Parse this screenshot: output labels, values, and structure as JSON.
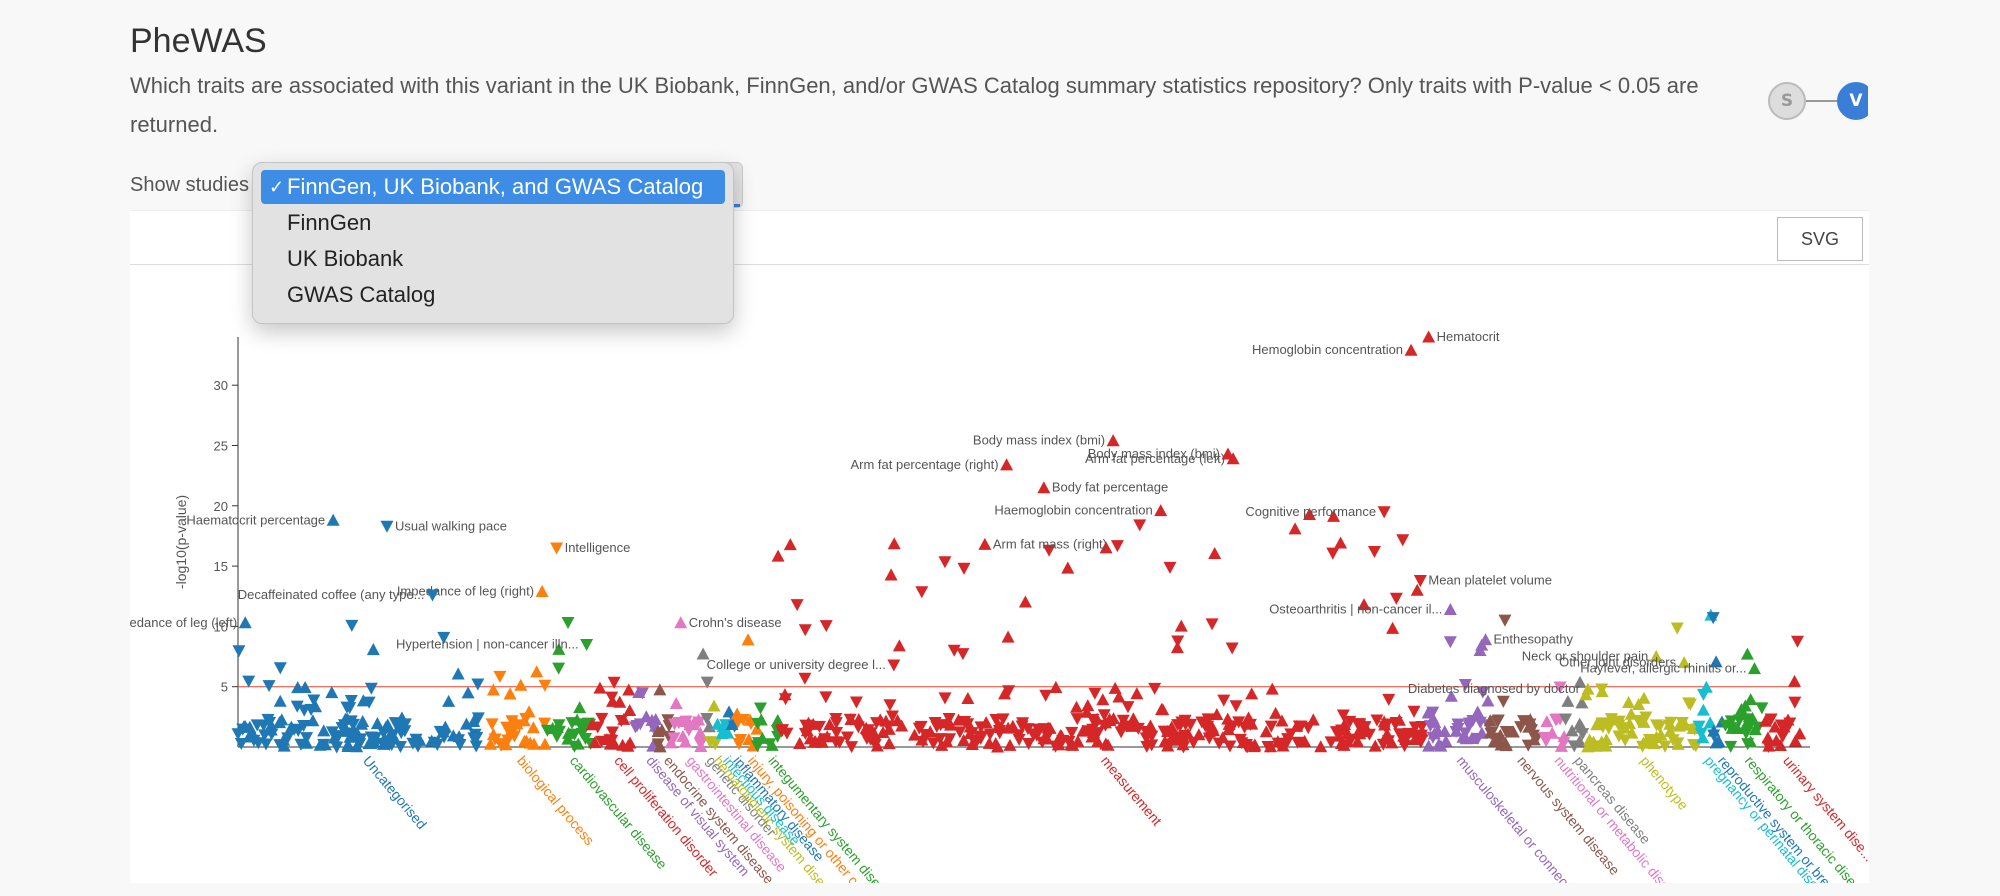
{
  "page": {
    "title": "PheWAS",
    "description": "Which traits are associated with this variant in the UK Biobank, FinnGen, and/or GWAS Catalog summary statistics repository? Only traits with P-value < 0.05 are returned."
  },
  "stepper": {
    "steps": [
      "S",
      "V"
    ],
    "active": "V"
  },
  "controls": {
    "show_studies_label": "Show studies",
    "options": [
      "FinnGen, UK Biobank, and GWAS Catalog",
      "FinnGen",
      "UK Biobank",
      "GWAS Catalog"
    ],
    "selected": "FinnGen, UK Biobank, and GWAS Catalog",
    "checkmark": "✓",
    "svg_button": "SVG"
  },
  "chart_data": {
    "type": "scatter",
    "ylabel": "-log10(p-value)",
    "yticks": [
      5,
      10,
      15,
      20,
      25,
      30
    ],
    "ylim": [
      0,
      33
    ],
    "threshold": 5,
    "threshold_color": "#e8452f",
    "categories": [
      {
        "name": "Uncategorised",
        "color": "#1f77b4",
        "x": [
          0,
          240
        ]
      },
      {
        "name": "biological process",
        "color": "#ff7f0e",
        "x": [
          240,
          298
        ]
      },
      {
        "name": "cardiovascular disease",
        "color": "#2ca02c",
        "x": [
          298,
          342
        ]
      },
      {
        "name": "cell proliferation disorder",
        "color": "#d62728",
        "x": [
          342,
          384
        ]
      },
      {
        "name": "disease of visual system",
        "color": "#9467bd",
        "x": [
          384,
          404
        ]
      },
      {
        "name": "endocrine system disease",
        "color": "#8c564b",
        "x": [
          404,
          418
        ]
      },
      {
        "name": "gastrointestinal disease",
        "color": "#e377c2",
        "x": [
          418,
          448
        ]
      },
      {
        "name": "genetic disorder",
        "color": "#7f7f7f",
        "x": [
          448,
          456
        ]
      },
      {
        "name": "hematopoietic system disease",
        "color": "#bcbd22",
        "x": [
          456,
          462
        ]
      },
      {
        "name": "infectious disease",
        "color": "#17becf",
        "x": [
          462,
          474
        ]
      },
      {
        "name": "inflammatory disease",
        "color": "#1f77b4",
        "x": [
          474,
          482
        ]
      },
      {
        "name": "injury, poisoning or other co...",
        "color": "#ff7f0e",
        "x": [
          482,
          502
        ]
      },
      {
        "name": "integumentary system dise...",
        "color": "#2ca02c",
        "x": [
          502,
          522
        ]
      },
      {
        "name": "measurement",
        "color": "#d62728",
        "x": [
          522,
          1145
        ]
      },
      {
        "name": "musculoskeletal or connecti...",
        "color": "#9467bd",
        "x": [
          1145,
          1210
        ]
      },
      {
        "name": "nervous system disease",
        "color": "#8c564b",
        "x": [
          1210,
          1262
        ]
      },
      {
        "name": "nutritional or metabolic dise...",
        "color": "#e377c2",
        "x": [
          1262,
          1282
        ]
      },
      {
        "name": "pancreas disease",
        "color": "#7f7f7f",
        "x": [
          1282,
          1300
        ]
      },
      {
        "name": "phenotype",
        "color": "#bcbd22",
        "x": [
          1300,
          1410
        ]
      },
      {
        "name": "pregnancy or perinatal dise...",
        "color": "#17becf",
        "x": [
          1410,
          1424
        ]
      },
      {
        "name": "reproductive system or brea...",
        "color": "#1f77b4",
        "x": [
          1424,
          1436
        ]
      },
      {
        "name": "respiratory or thoracic dise...",
        "color": "#2ca02c",
        "x": [
          1436,
          1476
        ]
      },
      {
        "name": "urinary system dise...",
        "color": "#d62728",
        "x": [
          1476,
          1510
        ]
      }
    ],
    "annotated_points": [
      {
        "label": "Hematocrit",
        "x": 1151,
        "y": 34,
        "color": "#d62728",
        "dir": "up"
      },
      {
        "label": "Hemoglobin concentration",
        "x": 1134,
        "y": 32.9,
        "color": "#d62728",
        "dir": "up"
      },
      {
        "label": "Body mass index (bmi)",
        "x": 846,
        "y": 25.4,
        "color": "#d62728",
        "dir": "up"
      },
      {
        "label": "Body mass index (bmi)",
        "x": 957,
        "y": 24.3,
        "color": "#d62728",
        "dir": "up"
      },
      {
        "label": "Arm fat percentage (left)",
        "x": 962,
        "y": 23.9,
        "color": "#d62728",
        "dir": "up"
      },
      {
        "label": "Arm fat percentage (right)",
        "x": 743,
        "y": 23.4,
        "color": "#d62728",
        "dir": "up"
      },
      {
        "label": "Body fat percentage",
        "x": 779,
        "y": 21.5,
        "color": "#d62728",
        "dir": "up"
      },
      {
        "label": "Haemoglobin concentration",
        "x": 892,
        "y": 19.6,
        "color": "#d62728",
        "dir": "up"
      },
      {
        "label": "Cognitive performance",
        "x": 1108,
        "y": 19.5,
        "color": "#d62728",
        "dir": "down"
      },
      {
        "label": "Haematocrit percentage",
        "x": 92,
        "y": 18.8,
        "color": "#1f77b4",
        "dir": "up"
      },
      {
        "label": "Usual walking pace",
        "x": 144,
        "y": 18.3,
        "color": "#1f77b4",
        "dir": "down"
      },
      {
        "label": "Arm fat mass (right)",
        "x": 722,
        "y": 16.8,
        "color": "#d62728",
        "dir": "up"
      },
      {
        "label": "Intelligence",
        "x": 308,
        "y": 16.5,
        "color": "#ff7f0e",
        "dir": "down"
      },
      {
        "label": "Mean platelet volume",
        "x": 1143,
        "y": 13.8,
        "color": "#d62728",
        "dir": "down"
      },
      {
        "label": "Impedance of leg (right)",
        "x": 294,
        "y": 12.9,
        "color": "#ff7f0e",
        "dir": "up"
      },
      {
        "label": "Decaffeinated coffee (any type...",
        "x": 188,
        "y": 12.6,
        "color": "#1f77b4",
        "dir": "down"
      },
      {
        "label": "Osteoarthritis | non-cancer il...",
        "x": 1172,
        "y": 11.4,
        "color": "#9467bd",
        "dir": "up"
      },
      {
        "label": "Crohn's disease",
        "x": 428,
        "y": 10.3,
        "color": "#e377c2",
        "dir": "up"
      },
      {
        "label": "Impedance of leg (left)",
        "x": 7,
        "y": 10.3,
        "color": "#1f77b4",
        "dir": "up"
      },
      {
        "label": "Enthesopathy",
        "x": 1206,
        "y": 8.9,
        "color": "#9467bd",
        "dir": "up"
      },
      {
        "label": "Hypertension | non-cancer illn...",
        "x": 337,
        "y": 8.5,
        "color": "#2ca02c",
        "dir": "down"
      },
      {
        "label": "Neck or shoulder pain",
        "x": 1371,
        "y": 7.5,
        "color": "#bcbd22",
        "dir": "up"
      },
      {
        "label": "Other joint disorders",
        "x": 1398,
        "y": 7.0,
        "color": "#bcbd22",
        "dir": "up"
      },
      {
        "label": "College or university degree l...",
        "x": 634,
        "y": 6.8,
        "color": "#d62728",
        "dir": "down"
      },
      {
        "label": "Hayfever, allergic rhinitis or...",
        "x": 1466,
        "y": 6.5,
        "color": "#2ca02c",
        "dir": "up"
      },
      {
        "label": "Diabetes diagnosed by doctor",
        "x": 1305,
        "y": 4.8,
        "color": "#bcbd22",
        "dir": "up"
      }
    ]
  }
}
